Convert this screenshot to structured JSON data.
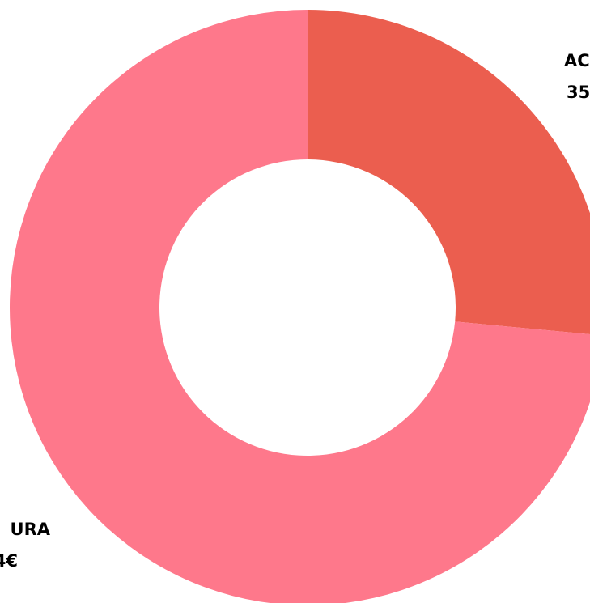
{
  "chart_data": {
    "type": "donut",
    "categories": [
      "AC",
      "URA"
    ],
    "amount_labels": [
      "35",
      "4€"
    ],
    "values": [
      26.5,
      73.5
    ],
    "colors": [
      "#eb5e4f",
      "#fe788b"
    ]
  }
}
